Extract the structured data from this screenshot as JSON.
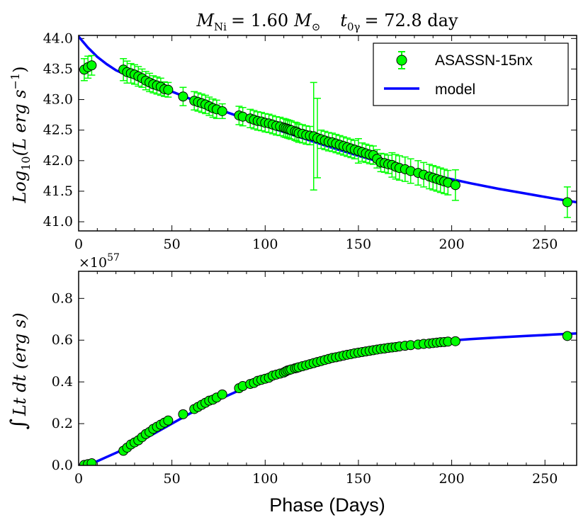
{
  "colors": {
    "marker_fill": "#00ff00",
    "marker_edge": "#000000",
    "errorbar": "#00ff00",
    "model_line": "#0000ff"
  },
  "chart_data": [
    {
      "type": "scatter",
      "title_parts": [
        "M",
        "Ni",
        "= 1.60",
        "M",
        "⊙",
        "t",
        "0γ",
        "= 72.8 day"
      ],
      "xlabel": "",
      "ylabel_parts": [
        "Log",
        "10",
        "(L erg s",
        "−1",
        ")"
      ],
      "xlim": [
        0,
        267
      ],
      "ylim": [
        40.85,
        44.05
      ],
      "xticks": [
        "0",
        "50",
        "100",
        "150",
        "200",
        "250"
      ],
      "yticks": [
        "41.0",
        "41.5",
        "42.0",
        "42.5",
        "43.0",
        "43.5",
        "44.0"
      ],
      "legend_position": "top-right",
      "series": [
        {
          "name": "ASASSN-15nx",
          "kind": "points_with_errorbars",
          "x": [
            3,
            5,
            7,
            24,
            26,
            28,
            30,
            32,
            34,
            36,
            38,
            40,
            42,
            44,
            46,
            48,
            56,
            62,
            64,
            66,
            68,
            70,
            72,
            74,
            77,
            86,
            88,
            92,
            94,
            96,
            98,
            100,
            102,
            104,
            106,
            108,
            110,
            111,
            112,
            113,
            114,
            116,
            117,
            118,
            120,
            122,
            124,
            126,
            128,
            130,
            132,
            134,
            136,
            138,
            140,
            142,
            144,
            146,
            148,
            150,
            152,
            154,
            156,
            158,
            160,
            162,
            164,
            166,
            168,
            170,
            172,
            175,
            178,
            182,
            185,
            188,
            190,
            192,
            194,
            196,
            198,
            202,
            262
          ],
          "y": [
            43.49,
            43.53,
            43.56,
            43.49,
            43.45,
            43.43,
            43.41,
            43.38,
            43.35,
            43.31,
            43.28,
            43.25,
            43.23,
            43.21,
            43.17,
            43.16,
            43.05,
            42.98,
            42.96,
            42.94,
            42.92,
            42.89,
            42.86,
            42.84,
            42.81,
            42.74,
            42.72,
            42.69,
            42.67,
            42.65,
            42.64,
            42.62,
            42.61,
            42.59,
            42.57,
            42.56,
            42.54,
            42.53,
            42.52,
            42.51,
            42.5,
            42.48,
            42.47,
            42.45,
            42.44,
            42.42,
            42.41,
            42.4,
            42.37,
            42.35,
            42.33,
            42.31,
            42.3,
            42.28,
            42.26,
            42.24,
            42.22,
            42.2,
            42.18,
            42.16,
            42.14,
            42.12,
            42.1,
            42.09,
            42.03,
            41.97,
            41.96,
            41.94,
            41.93,
            41.9,
            41.88,
            41.86,
            41.83,
            41.8,
            41.77,
            41.74,
            41.72,
            41.7,
            41.68,
            41.66,
            41.64,
            41.6,
            41.32
          ],
          "yerr": [
            0.18,
            0.18,
            0.16,
            0.18,
            0.18,
            0.16,
            0.16,
            0.16,
            0.15,
            0.15,
            0.15,
            0.14,
            0.14,
            0.14,
            0.12,
            0.12,
            0.15,
            0.15,
            0.15,
            0.15,
            0.15,
            0.15,
            0.15,
            0.15,
            0.12,
            0.15,
            0.15,
            0.15,
            0.15,
            0.15,
            0.15,
            0.15,
            0.15,
            0.15,
            0.15,
            0.15,
            0.15,
            0.15,
            0.15,
            0.15,
            0.15,
            0.15,
            0.15,
            0.15,
            0.15,
            0.15,
            0.15,
            0.88,
            0.65,
            0.15,
            0.15,
            0.15,
            0.15,
            0.15,
            0.15,
            0.15,
            0.15,
            0.15,
            0.15,
            0.2,
            0.15,
            0.15,
            0.15,
            0.15,
            0.15,
            0.15,
            0.15,
            0.15,
            0.2,
            0.2,
            0.2,
            0.2,
            0.2,
            0.2,
            0.2,
            0.2,
            0.2,
            0.2,
            0.2,
            0.2,
            0.2,
            0.25,
            0.25
          ]
        },
        {
          "name": "model",
          "kind": "line",
          "x": [
            0,
            5,
            10,
            15,
            20,
            25,
            30,
            40,
            50,
            60,
            75,
            90,
            105,
            120,
            135,
            150,
            165,
            180,
            195,
            210,
            225,
            240,
            255,
            267
          ],
          "y": [
            44.03,
            43.85,
            43.7,
            43.58,
            43.48,
            43.41,
            43.35,
            43.24,
            43.13,
            43.01,
            42.84,
            42.68,
            42.52,
            42.37,
            42.22,
            42.08,
            41.95,
            41.83,
            41.73,
            41.63,
            41.54,
            41.46,
            41.38,
            41.32
          ]
        }
      ]
    },
    {
      "type": "scatter",
      "xlabel": "Phase (Days)",
      "ylabel_parts": [
        "∫",
        "Lt dt (erg s)"
      ],
      "scale_label_parts": [
        "×10",
        "57"
      ],
      "xlim": [
        0,
        267
      ],
      "ylim": [
        0,
        0.93
      ],
      "xticks": [
        "0",
        "50",
        "100",
        "150",
        "200",
        "250"
      ],
      "yticks": [
        "0.0",
        "0.2",
        "0.4",
        "0.6",
        "0.8"
      ],
      "series": [
        {
          "name": "ASASSN-15nx",
          "kind": "points",
          "x": [
            3,
            5,
            7,
            24,
            26,
            28,
            30,
            32,
            34,
            36,
            38,
            40,
            42,
            44,
            46,
            48,
            56,
            62,
            64,
            66,
            68,
            70,
            72,
            74,
            77,
            86,
            88,
            92,
            94,
            96,
            98,
            100,
            102,
            104,
            106,
            108,
            110,
            111,
            112,
            113,
            114,
            116,
            117,
            118,
            120,
            122,
            124,
            126,
            128,
            130,
            132,
            134,
            136,
            138,
            140,
            142,
            144,
            146,
            148,
            150,
            152,
            154,
            156,
            158,
            160,
            162,
            164,
            166,
            168,
            170,
            172,
            175,
            178,
            182,
            185,
            188,
            190,
            192,
            194,
            196,
            198,
            202,
            262
          ],
          "y": [
            0.002,
            0.006,
            0.01,
            0.07,
            0.085,
            0.1,
            0.11,
            0.12,
            0.135,
            0.15,
            0.16,
            0.175,
            0.185,
            0.195,
            0.205,
            0.215,
            0.245,
            0.27,
            0.28,
            0.29,
            0.3,
            0.31,
            0.315,
            0.325,
            0.34,
            0.37,
            0.38,
            0.39,
            0.395,
            0.405,
            0.41,
            0.415,
            0.42,
            0.43,
            0.435,
            0.44,
            0.445,
            0.45,
            0.455,
            0.457,
            0.46,
            0.465,
            0.467,
            0.47,
            0.475,
            0.48,
            0.485,
            0.49,
            0.495,
            0.5,
            0.505,
            0.51,
            0.515,
            0.518,
            0.522,
            0.526,
            0.53,
            0.533,
            0.537,
            0.54,
            0.543,
            0.546,
            0.549,
            0.552,
            0.555,
            0.558,
            0.56,
            0.563,
            0.565,
            0.567,
            0.57,
            0.573,
            0.576,
            0.579,
            0.582,
            0.584,
            0.586,
            0.588,
            0.59,
            0.591,
            0.593,
            0.595,
            0.62
          ]
        },
        {
          "name": "model",
          "kind": "line",
          "x": [
            0,
            5,
            10,
            15,
            20,
            25,
            30,
            40,
            50,
            60,
            75,
            90,
            105,
            120,
            135,
            150,
            165,
            180,
            195,
            210,
            225,
            240,
            255,
            267
          ],
          "y": [
            0.0,
            0.005,
            0.02,
            0.04,
            0.06,
            0.08,
            0.1,
            0.15,
            0.2,
            0.25,
            0.315,
            0.375,
            0.425,
            0.47,
            0.505,
            0.535,
            0.56,
            0.58,
            0.595,
            0.605,
            0.613,
            0.62,
            0.627,
            0.632
          ]
        }
      ]
    }
  ],
  "legend": {
    "items": [
      {
        "label": "ASASSN-15nx",
        "kind": "marker"
      },
      {
        "label": "model",
        "kind": "line"
      }
    ]
  }
}
